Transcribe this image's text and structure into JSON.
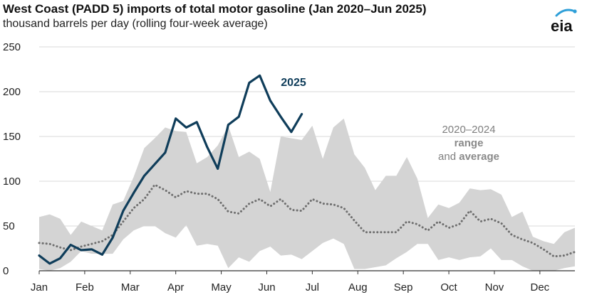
{
  "header": {
    "title": "West Coast (PADD 5) imports of total motor gasoline (Jan 2020–Jun 2025)",
    "subtitle": "thousand barrels per day (rolling four-week average)",
    "logo_text": "eia"
  },
  "colors": {
    "series_2025": "#0f3d5a",
    "range_fill": "#d4d4d4",
    "average_line": "#6e6e6e",
    "logo_arc": "#2e9fd8"
  },
  "chart_data": {
    "type": "line",
    "title": "West Coast (PADD 5) imports of total motor gasoline (Jan 2020–Jun 2025)",
    "ylabel": "thousand barrels per day (rolling four-week average)",
    "ylim": [
      0,
      250
    ],
    "yticks": [
      "0",
      "50",
      "100",
      "150",
      "200",
      "250"
    ],
    "x_unit": "week of year",
    "xlim": [
      1,
      52
    ],
    "months": [
      "Jan",
      "Feb",
      "Mar",
      "Apr",
      "May",
      "Jun",
      "Jul",
      "Aug",
      "Sep",
      "Oct",
      "Nov",
      "Dec"
    ],
    "grid": "horizontal",
    "annotations": {
      "series_label": "2025",
      "range_line1": "2020–2024",
      "range_line2": "range",
      "range_line3_prefix": "and ",
      "range_line3_bold": "average"
    },
    "series_2025": {
      "name": "2025",
      "x": [
        1,
        2,
        3,
        4,
        5,
        6,
        7,
        8,
        9,
        10,
        11,
        12,
        13,
        14,
        15,
        16,
        17,
        18,
        19,
        20,
        21,
        22,
        23,
        24,
        25,
        26
      ],
      "y": [
        17,
        8,
        14,
        29,
        23,
        24,
        18,
        37,
        67,
        87,
        106,
        119,
        132,
        170,
        160,
        166,
        138,
        114,
        163,
        172,
        210,
        218,
        190,
        172,
        155,
        175
      ]
    },
    "range_2020_2024": {
      "name": "2020–2024 range",
      "x": [
        1,
        2,
        3,
        4,
        5,
        6,
        7,
        8,
        9,
        10,
        11,
        12,
        13,
        14,
        15,
        16,
        17,
        18,
        19,
        20,
        21,
        22,
        23,
        24,
        25,
        26,
        27,
        28,
        29,
        30,
        31,
        32,
        33,
        34,
        35,
        36,
        37,
        38,
        39,
        40,
        41,
        42,
        43,
        44,
        45,
        46,
        47,
        48,
        49,
        50,
        51,
        52
      ],
      "max": [
        60,
        63,
        58,
        40,
        55,
        50,
        45,
        74,
        78,
        105,
        137,
        148,
        160,
        156,
        155,
        120,
        127,
        140,
        162,
        127,
        133,
        125,
        88,
        150,
        148,
        146,
        162,
        125,
        160,
        170,
        130,
        115,
        90,
        106,
        106,
        127,
        103,
        59,
        74,
        70,
        76,
        92,
        90,
        91,
        85,
        60,
        66,
        38,
        33,
        30,
        43,
        48
      ],
      "min": [
        2,
        0,
        3,
        10,
        22,
        19,
        19,
        19,
        35,
        45,
        50,
        50,
        42,
        37,
        51,
        28,
        30,
        28,
        3,
        15,
        10,
        22,
        27,
        17,
        18,
        13,
        22,
        31,
        36,
        30,
        2,
        2,
        4,
        6,
        14,
        21,
        30,
        30,
        12,
        15,
        12,
        15,
        16,
        25,
        12,
        12,
        5,
        0,
        0,
        0,
        3,
        5
      ]
    },
    "average_2020_2024": {
      "name": "2020–2024 average",
      "x": [
        1,
        2,
        3,
        4,
        5,
        6,
        7,
        8,
        9,
        10,
        11,
        12,
        13,
        14,
        15,
        16,
        17,
        18,
        19,
        20,
        21,
        22,
        23,
        24,
        25,
        26,
        27,
        28,
        29,
        30,
        31,
        32,
        33,
        34,
        35,
        36,
        37,
        38,
        39,
        40,
        41,
        42,
        43,
        44,
        45,
        46,
        47,
        48,
        49,
        50,
        51,
        52
      ],
      "y": [
        31,
        30,
        26,
        23,
        27,
        30,
        33,
        40,
        55,
        70,
        80,
        96,
        90,
        82,
        89,
        86,
        86,
        80,
        66,
        64,
        75,
        80,
        72,
        80,
        68,
        67,
        80,
        75,
        74,
        70,
        56,
        43,
        43,
        43,
        43,
        55,
        52,
        45,
        55,
        48,
        52,
        67,
        55,
        58,
        53,
        40,
        35,
        31,
        24,
        16,
        17,
        21
      ]
    }
  }
}
